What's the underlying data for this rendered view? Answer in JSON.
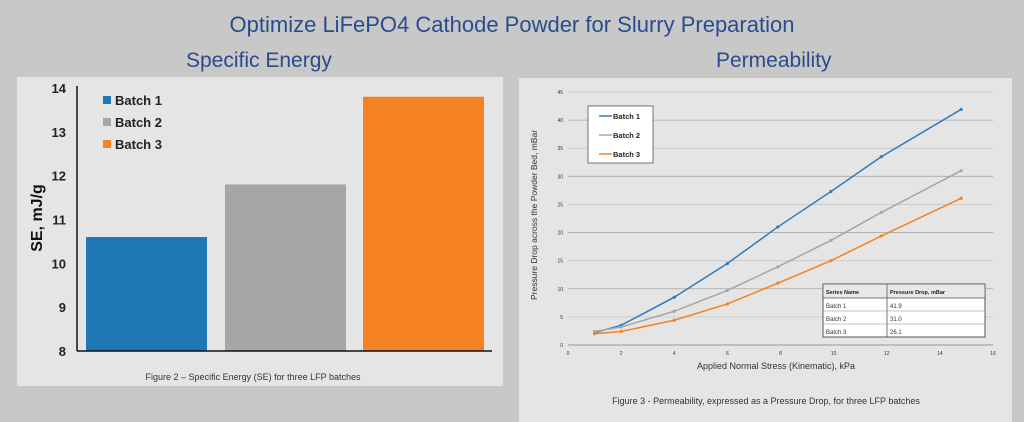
{
  "header": {
    "title": "Optimize LiFePO4 Cathode Powder for Slurry Preparation",
    "left_title": "Specific Energy",
    "right_title": "Permeability"
  },
  "chart_data": [
    {
      "type": "bar",
      "title": "",
      "caption": "Figure 2 – Specific Energy (SE) for three LFP batches",
      "xlabel": "",
      "ylabel": "SE, mJ/g",
      "ylim": [
        8,
        14
      ],
      "yticks": [
        8,
        9,
        10,
        11,
        12,
        13,
        14
      ],
      "grid": false,
      "legend": "top-left",
      "categories": [
        "Batch 1",
        "Batch 2",
        "Batch 3"
      ],
      "values": [
        10.6,
        11.8,
        13.8
      ],
      "colors": [
        "#1f77b4",
        "#a6a6a6",
        "#f58220"
      ]
    },
    {
      "type": "line",
      "title": "",
      "caption": "Figure 3 - Permeability, expressed as a Pressure Drop, for three LFP batches",
      "xlabel": "Applied Normal Stress (Kinematic), kPa",
      "ylabel": "Pressure Drop across the Powder Bed, mBar",
      "xlim": [
        0,
        16
      ],
      "ylim": [
        0,
        45
      ],
      "xticks": [
        0,
        2,
        4,
        6,
        8,
        10,
        12,
        14,
        16
      ],
      "yticks": [
        0,
        5,
        10,
        15,
        20,
        25,
        30,
        35,
        40,
        45
      ],
      "grid": true,
      "legend": "top-left",
      "x": [
        1,
        2,
        4,
        6,
        7.9,
        9.9,
        11.8,
        14.8
      ],
      "series": [
        {
          "name": "Batch 1",
          "color": "#2e7bc0",
          "values": [
            2.2,
            3.5,
            8.5,
            14.5,
            21,
            27.3,
            33.5,
            41.9
          ]
        },
        {
          "name": "Batch 2",
          "color": "#a6a6a6",
          "values": [
            2.4,
            3.2,
            6,
            9.7,
            13.9,
            18.6,
            23.6,
            31.0
          ]
        },
        {
          "name": "Batch 3",
          "color": "#f58220",
          "values": [
            2.0,
            2.4,
            4.4,
            7.3,
            11,
            15,
            19.4,
            26.1
          ]
        }
      ],
      "table": {
        "headers": [
          "Series Name",
          "Pressure Drop, mBar"
        ],
        "rows": [
          [
            "Batch 1",
            "41.9"
          ],
          [
            "Batch 2",
            "31.0"
          ],
          [
            "Batch 3",
            "26.1"
          ]
        ]
      }
    }
  ]
}
